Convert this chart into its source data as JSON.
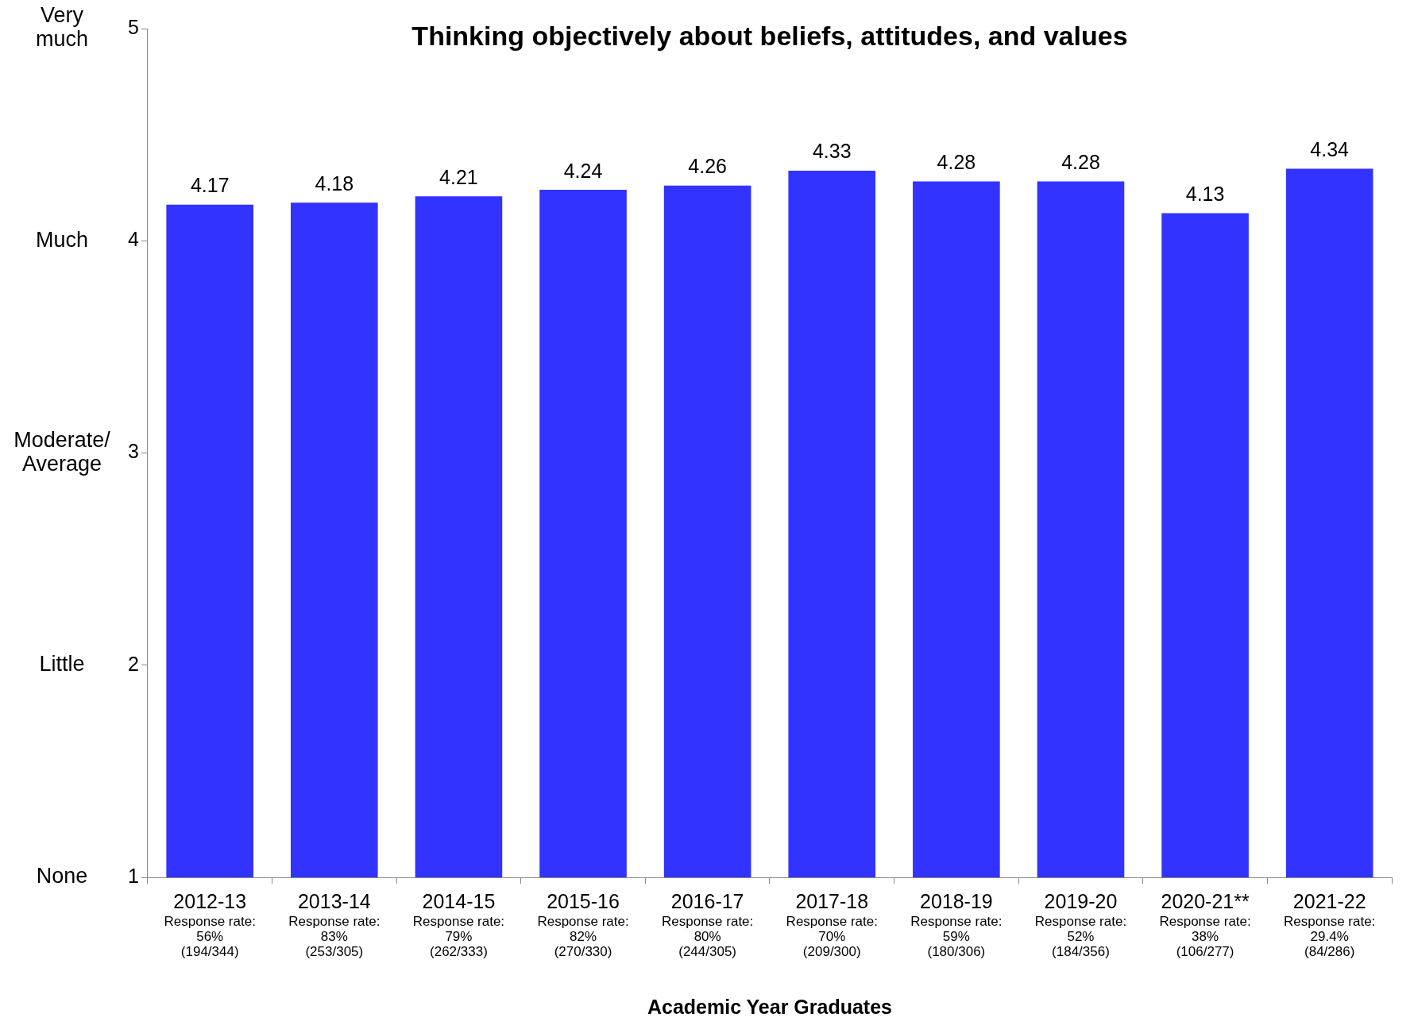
{
  "chart_data": {
    "type": "bar",
    "title": "Thinking objectively about beliefs, attitudes, and values",
    "xlabel": "Academic Year Graduates",
    "categories": [
      "2012-13\nResponse rate:\n56%\n(194/344)",
      "2013-14\nResponse rate:\n83%\n(253/305)",
      "2014-15\nResponse rate:\n79%\n(262/333)",
      "2015-16\nResponse rate:\n82%\n(270/330)",
      "2016-17\nResponse rate:\n80%\n(244/305)",
      "2017-18\nResponse rate:\n70%\n(209/300)",
      "2018-19\nResponse rate:\n59%\n(180/306)",
      "2019-20\nResponse rate:\n52%\n(184/356)",
      "2020-21**\nResponse rate:\n38%\n(106/277)",
      "2021-22\nResponse rate:\n29.4%\n(84/286)"
    ],
    "values": [
      4.17,
      4.18,
      4.21,
      4.24,
      4.26,
      4.33,
      4.28,
      4.28,
      4.13,
      4.34
    ],
    "color": "#3333ff",
    "data_labels": true,
    "grid": false,
    "legend": false,
    "ylim": [
      1,
      5
    ],
    "yticks": [
      1,
      2,
      3,
      4,
      5
    ],
    "annotations": [
      "None",
      "Little",
      "Moderate/\nAverage",
      "Much",
      "Very\nmuch"
    ]
  }
}
